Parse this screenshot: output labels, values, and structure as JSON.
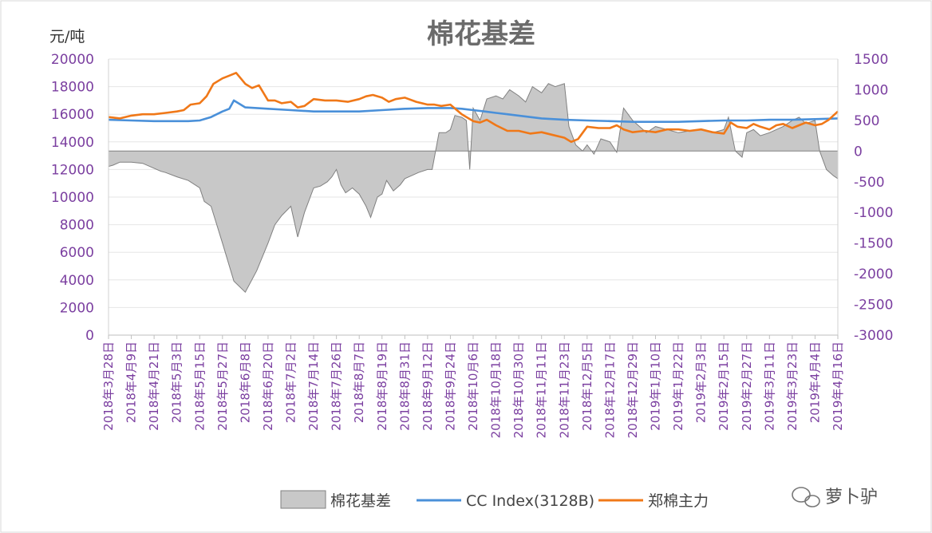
{
  "chart_data": {
    "type": "line",
    "title": "棉花基差",
    "y_left_unit": "元/吨",
    "y_left_ticks": [
      0,
      2000,
      4000,
      6000,
      8000,
      10000,
      12000,
      14000,
      16000,
      18000,
      20000
    ],
    "y_left_range": [
      0,
      20000
    ],
    "y_right_ticks": [
      -3000,
      -2500,
      -2000,
      -1500,
      -1000,
      -500,
      0,
      500,
      1000,
      1500
    ],
    "y_right_range": [
      -3000,
      1500
    ],
    "x_ticks": [
      "2018年3月28日",
      "2018年4月9日",
      "2018年4月21日",
      "2018年5月3日",
      "2018年5月15日",
      "2018年5月27日",
      "2018年6月8日",
      "2018年6月20日",
      "2018年7月2日",
      "2018年7月14日",
      "2018年7月26日",
      "2018年8月7日",
      "2018年8月19日",
      "2018年8月31日",
      "2018年9月12日",
      "2018年9月24日",
      "2018年10月6日",
      "2018年10月18日",
      "2018年10月30日",
      "2018年11月11日",
      "2018年11月23日",
      "2018年12月5日",
      "2018年12月17日",
      "2018年12月29日",
      "2019年1月10日",
      "2019年1月22日",
      "2019年2月3日",
      "2019年2月15日",
      "2019年2月27日",
      "2019年3月11日",
      "2019年3月23日",
      "2019年4月4日",
      "2019年4月16日"
    ],
    "grid": "horizontal",
    "legend_position": "bottom",
    "colors": {
      "basis": "#c8c8c8",
      "basis_stroke": "#808080",
      "cc": "#4a90d9",
      "zz": "#f07818"
    },
    "series": [
      {
        "name": "棉花基差",
        "axis": "right",
        "kind": "area",
        "x": [
          0,
          0.2,
          0.5,
          1,
          1.5,
          2,
          2.3,
          2.5,
          3,
          3.5,
          4,
          4.2,
          4.5,
          5,
          5.5,
          6,
          6.5,
          7,
          7.3,
          7.6,
          8,
          8.3,
          8.6,
          9,
          9.3,
          9.6,
          9.8,
          10,
          10.2,
          10.4,
          10.7,
          11,
          11.3,
          11.5,
          11.8,
          12,
          12.2,
          12.5,
          12.8,
          13,
          13.3,
          13.6,
          14,
          14.2,
          14.5,
          14.8,
          15,
          15.2,
          15.5,
          15.7,
          15.85,
          16,
          16.3,
          16.6,
          17,
          17.3,
          17.6,
          18,
          18.3,
          18.6,
          19,
          19.3,
          19.6,
          20,
          20.2,
          20.5,
          20.8,
          21,
          21.3,
          21.6,
          22,
          22.3,
          22.6,
          23,
          23.3,
          23.6,
          24,
          24.5,
          25,
          25.5,
          26,
          26.5,
          27,
          27.2,
          27.5,
          27.8,
          28,
          28.3,
          28.6,
          29,
          29.3,
          29.6,
          30,
          30.3,
          30.6,
          31,
          31.2,
          31.5,
          31.8,
          32
        ],
        "values": [
          -250,
          -230,
          -180,
          -180,
          -200,
          -280,
          -330,
          -350,
          -420,
          -480,
          -600,
          -820,
          -900,
          -1500,
          -2120,
          -2300,
          -1950,
          -1500,
          -1200,
          -1050,
          -900,
          -1400,
          -1000,
          -600,
          -570,
          -500,
          -420,
          -300,
          -550,
          -680,
          -600,
          -700,
          -900,
          -1080,
          -750,
          -700,
          -480,
          -650,
          -550,
          -450,
          -400,
          -350,
          -300,
          -300,
          300,
          300,
          350,
          580,
          550,
          500,
          -300,
          700,
          500,
          850,
          900,
          850,
          1000,
          900,
          800,
          1050,
          950,
          1100,
          1050,
          1100,
          400,
          100,
          0,
          100,
          -50,
          200,
          150,
          -20,
          700,
          500,
          400,
          300,
          400,
          350,
          300,
          330,
          350,
          300,
          350,
          550,
          0,
          -100,
          300,
          350,
          250,
          300,
          350,
          400,
          500,
          550,
          450,
          500,
          0,
          -300,
          -400,
          -450
        ]
      },
      {
        "name": "CC Index(3128B)",
        "axis": "left",
        "kind": "line",
        "x": [
          0,
          1,
          2,
          3,
          3.5,
          4,
          4.5,
          5,
          5.3,
          5.5,
          6,
          7,
          8,
          9,
          10,
          11,
          12,
          13,
          14,
          15,
          15.5,
          16,
          16.5,
          17,
          18,
          19,
          20,
          21,
          22,
          23,
          24,
          25,
          26,
          27,
          28,
          29,
          30,
          31,
          32
        ],
        "values": [
          15600,
          15550,
          15500,
          15500,
          15500,
          15550,
          15800,
          16200,
          16400,
          17000,
          16500,
          16400,
          16300,
          16200,
          16200,
          16200,
          16300,
          16400,
          16450,
          16450,
          16400,
          16300,
          16200,
          16100,
          15900,
          15700,
          15600,
          15550,
          15500,
          15450,
          15450,
          15450,
          15500,
          15550,
          15550,
          15600,
          15600,
          15650,
          15700
        ]
      },
      {
        "name": "郑棉主力",
        "axis": "left",
        "kind": "line",
        "x": [
          0,
          0.5,
          1,
          1.5,
          2,
          2.5,
          3,
          3.3,
          3.6,
          4,
          4.3,
          4.6,
          5,
          5.3,
          5.6,
          5.8,
          6,
          6.3,
          6.6,
          7,
          7.3,
          7.6,
          8,
          8.3,
          8.6,
          9,
          9.5,
          10,
          10.5,
          11,
          11.3,
          11.6,
          12,
          12.3,
          12.6,
          13,
          13.5,
          14,
          14.3,
          14.6,
          15,
          15.5,
          16,
          16.3,
          16.6,
          17,
          17.5,
          18,
          18.5,
          19,
          19.5,
          20,
          20.3,
          20.6,
          21,
          21.5,
          22,
          22.3,
          22.6,
          23,
          23.5,
          24,
          24.5,
          25,
          25.5,
          26,
          26.5,
          27,
          27.3,
          27.6,
          28,
          28.3,
          28.6,
          29,
          29.3,
          29.6,
          30,
          30.3,
          30.6,
          31,
          31.3,
          31.6,
          32
        ],
        "values": [
          15800,
          15700,
          15900,
          16000,
          16000,
          16100,
          16200,
          16300,
          16700,
          16800,
          17300,
          18200,
          18600,
          18800,
          19000,
          18600,
          18200,
          17900,
          18100,
          17000,
          17000,
          16800,
          16900,
          16500,
          16600,
          17100,
          17000,
          17000,
          16900,
          17100,
          17300,
          17400,
          17200,
          16900,
          17100,
          17200,
          16900,
          16700,
          16700,
          16600,
          16700,
          16000,
          15500,
          15400,
          15600,
          15200,
          14800,
          14800,
          14600,
          14700,
          14500,
          14300,
          14000,
          14200,
          15100,
          15000,
          15000,
          15200,
          14900,
          14700,
          14800,
          14700,
          14900,
          14900,
          14800,
          14900,
          14700,
          14600,
          15400,
          15100,
          15000,
          15300,
          15100,
          14900,
          15200,
          15300,
          15000,
          15200,
          15400,
          15200,
          15300,
          15600,
          16200
        ]
      }
    ]
  },
  "watermark": {
    "text": "萝卜驴"
  }
}
